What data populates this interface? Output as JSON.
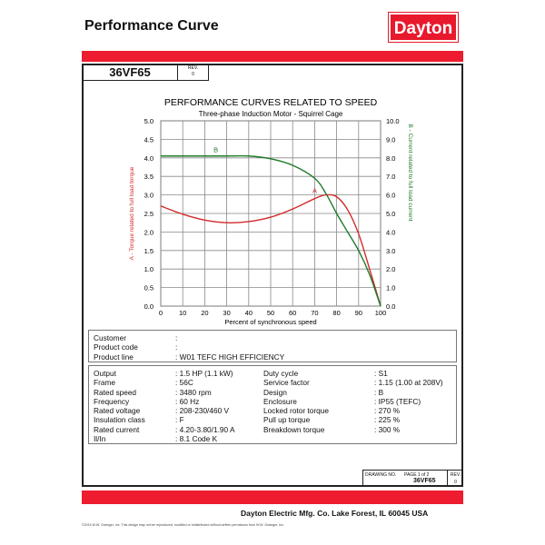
{
  "header": {
    "title": "Performance Curve",
    "logo": "Dayton"
  },
  "titleblock": {
    "part": "36VF65",
    "rev_label": "REV.",
    "rev": "0"
  },
  "chart_data": {
    "type": "line",
    "title": "PERFORMANCE CURVES RELATED TO SPEED",
    "subtitle": "Three-phase Induction Motor - Squirrel Cage",
    "xlabel": "Percent of synchronous speed",
    "ylabel_left": "A - Torque related to full load torque",
    "ylabel_right": "B - Current related to full load current",
    "xlim": [
      0,
      100
    ],
    "ylim_left": [
      0,
      5
    ],
    "ylim_right": [
      0,
      10
    ],
    "x_ticks": [
      "0",
      "10",
      "20",
      "30",
      "40",
      "50",
      "60",
      "70",
      "80",
      "90",
      "100"
    ],
    "y_left_ticks": [
      "0.0",
      "0.5",
      "1.0",
      "1.5",
      "2.0",
      "2.5",
      "3.0",
      "3.5",
      "4.0",
      "4.5",
      "5.0"
    ],
    "y_right_ticks": [
      "0.0",
      "1.0",
      "2.0",
      "3.0",
      "4.0",
      "5.0",
      "6.0",
      "7.0",
      "8.0",
      "9.0",
      "10.0"
    ],
    "grid": true,
    "series": [
      {
        "name": "A",
        "axis": "left",
        "color": "#d42a2a",
        "x": [
          0,
          10,
          20,
          30,
          40,
          50,
          60,
          70,
          75,
          80,
          85,
          90,
          95,
          100
        ],
        "y": [
          2.7,
          2.48,
          2.32,
          2.25,
          2.28,
          2.4,
          2.62,
          2.9,
          3.0,
          2.95,
          2.6,
          1.95,
          1.0,
          0
        ]
      },
      {
        "name": "B",
        "axis": "right",
        "color": "#1e7a2a",
        "x": [
          0,
          10,
          20,
          30,
          40,
          50,
          60,
          70,
          75,
          80,
          85,
          90,
          95,
          100
        ],
        "y": [
          8.1,
          8.1,
          8.1,
          8.1,
          8.1,
          7.95,
          7.6,
          6.9,
          6.1,
          5.0,
          4.0,
          3.0,
          1.7,
          0
        ]
      }
    ]
  },
  "customer": [
    {
      "label": "Customer",
      "value": ":"
    },
    {
      "label": "Product code",
      "value": ":"
    },
    {
      "label": "Product line",
      "value": ": W01 TEFC HIGH EFFICIENCY"
    }
  ],
  "specs": [
    {
      "l1": "Output",
      "v1": ": 1.5 HP (1.1 kW)",
      "l2": "Duty cycle",
      "v2": ": S1"
    },
    {
      "l1": "Frame",
      "v1": ": 56C",
      "l2": "Service factor",
      "v2": ": 1.15   (1.00 at 208V)"
    },
    {
      "l1": "Rated speed",
      "v1": ": 3480 rpm",
      "l2": "Design",
      "v2": ": B"
    },
    {
      "l1": "Frequency",
      "v1": ": 60 Hz",
      "l2": "Enclosure",
      "v2": ": IP55 (TEFC)"
    },
    {
      "l1": "Rated voltage",
      "v1": ": 208-230/460 V",
      "l2": "Locked rotor torque",
      "v2": ": 270 %"
    },
    {
      "l1": "Insulation class",
      "v1": ": F",
      "l2": "Pull up torque",
      "v2": ": 225 %"
    },
    {
      "l1": "Rated current",
      "v1": ": 4.20-3.80/1.90 A",
      "l2": "Breakdown torque",
      "v2": ": 300 %"
    },
    {
      "l1": "Il/In",
      "v1": ": 8.1   Code K",
      "l2": "",
      "v2": ""
    }
  ],
  "drawing": {
    "label": "DRAWING NO.",
    "page": "PAGE  1  of  2",
    "number": "36VF65",
    "rev_label": "REV.",
    "rev": "0"
  },
  "footer": {
    "company": "Dayton Electric Mfg. Co.  Lake Forest, IL  60045  USA",
    "copyright": "©2015 W.W. Grainger, Inc.    This design may not be reproduced, modified or redistributed without written permission from W.W. Grainger, Inc."
  }
}
